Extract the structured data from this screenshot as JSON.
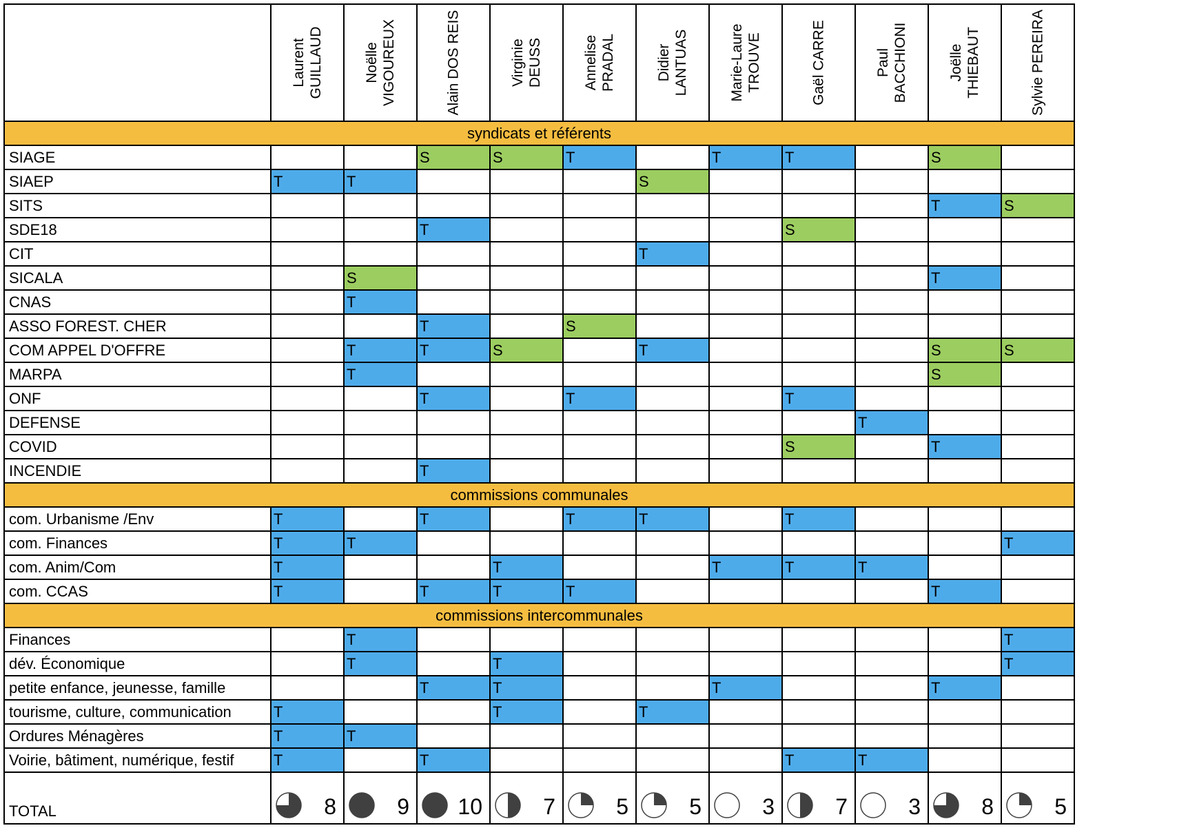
{
  "members": [
    {
      "name": "Laurent\nGUILLAUD"
    },
    {
      "name": "Noëlle\nVIGOUREUX"
    },
    {
      "name": "Alain DOS REIS"
    },
    {
      "name": "Virginie\nDEUSS"
    },
    {
      "name": "Annelise\nPRADAL"
    },
    {
      "name": "Didier\nLANTUAS"
    },
    {
      "name": "Marie-Laure\nTROUVE"
    },
    {
      "name": "Gaël CARRE"
    },
    {
      "name": "Paul\nBACCHIONI"
    },
    {
      "name": "Joëlle\nTHIEBAUT"
    },
    {
      "name": "Sylvie PEREIRA"
    }
  ],
  "sections": [
    {
      "title": "syndicats et référents",
      "rows": [
        {
          "label": "SIAGE",
          "cells": [
            "",
            "",
            "S",
            "S",
            "T",
            "",
            "T",
            "T",
            "",
            "S",
            ""
          ]
        },
        {
          "label": "SIAEP",
          "cells": [
            "T",
            "T",
            "",
            "",
            "",
            "S",
            "",
            "",
            "",
            "",
            ""
          ]
        },
        {
          "label": "SITS",
          "cells": [
            "",
            "",
            "",
            "",
            "",
            "",
            "",
            "",
            "",
            "T",
            "S"
          ]
        },
        {
          "label": "SDE18",
          "cells": [
            "",
            "",
            "T",
            "",
            "",
            "",
            "",
            "S",
            "",
            "",
            ""
          ]
        },
        {
          "label": "CIT",
          "cells": [
            "",
            "",
            "",
            "",
            "",
            "T",
            "",
            "",
            "",
            "",
            ""
          ]
        },
        {
          "label": "SICALA",
          "cells": [
            "",
            "S",
            "",
            "",
            "",
            "",
            "",
            "",
            "",
            "T",
            ""
          ]
        },
        {
          "label": "CNAS",
          "cells": [
            "",
            "T",
            "",
            "",
            "",
            "",
            "",
            "",
            "",
            "",
            ""
          ]
        },
        {
          "label": "ASSO FOREST. CHER",
          "cells": [
            "",
            "",
            "T",
            "",
            "S",
            "",
            "",
            "",
            "",
            "",
            ""
          ]
        },
        {
          "label": "COM APPEL D'OFFRE",
          "cells": [
            "",
            "T",
            "T",
            "S",
            "",
            "T",
            "",
            "",
            "",
            "S",
            "S"
          ]
        },
        {
          "label": "MARPA",
          "cells": [
            "",
            "T",
            "",
            "",
            "",
            "",
            "",
            "",
            "",
            "S",
            ""
          ]
        },
        {
          "label": "ONF",
          "cells": [
            "",
            "",
            "T",
            "",
            "T",
            "",
            "",
            "T",
            "",
            "",
            ""
          ]
        },
        {
          "label": "DEFENSE",
          "cells": [
            "",
            "",
            "",
            "",
            "",
            "",
            "",
            "",
            "T",
            "",
            ""
          ]
        },
        {
          "label": "COVID",
          "cells": [
            "",
            "",
            "",
            "",
            "",
            "",
            "",
            "S",
            "",
            "T",
            ""
          ]
        },
        {
          "label": "INCENDIE",
          "cells": [
            "",
            "",
            "T",
            "",
            "",
            "",
            "",
            "",
            "",
            "",
            ""
          ]
        }
      ]
    },
    {
      "title": "commissions communales",
      "rows": [
        {
          "label": "com. Urbanisme /Env",
          "cells": [
            "T",
            "",
            "T",
            "",
            "T",
            "T",
            "",
            "T",
            "",
            "",
            ""
          ]
        },
        {
          "label": "com. Finances",
          "cells": [
            "T",
            "T",
            "",
            "",
            "",
            "",
            "",
            "",
            "",
            "",
            "T"
          ]
        },
        {
          "label": "com. Anim/Com",
          "cells": [
            "T",
            "",
            "",
            "T",
            "",
            "",
            "T",
            "T",
            "T",
            "",
            ""
          ]
        },
        {
          "label": "com. CCAS",
          "cells": [
            "T",
            "",
            "T",
            "T",
            "T",
            "",
            "",
            "",
            "",
            "T",
            ""
          ]
        }
      ]
    },
    {
      "title": "commissions intercommunales",
      "rows": [
        {
          "label": "Finances",
          "cells": [
            "",
            "T",
            "",
            "",
            "",
            "",
            "",
            "",
            "",
            "",
            "T"
          ]
        },
        {
          "label": "dév. Économique",
          "cells": [
            "",
            "T",
            "",
            "T",
            "",
            "",
            "",
            "",
            "",
            "",
            "T"
          ]
        },
        {
          "label": "petite enfance, jeunesse, famille",
          "cells": [
            "",
            "",
            "T",
            "T",
            "",
            "",
            "T",
            "",
            "",
            "T",
            ""
          ]
        },
        {
          "label": "tourisme, culture, communication",
          "cells": [
            "T",
            "",
            "",
            "T",
            "",
            "T",
            "",
            "",
            "",
            "",
            ""
          ]
        },
        {
          "label": "Ordures Ménagères",
          "cells": [
            "T",
            "T",
            "",
            "",
            "",
            "",
            "",
            "",
            "",
            "",
            ""
          ]
        },
        {
          "label": "Voirie, bâtiment, numérique, festif",
          "cells": [
            "T",
            "",
            "T",
            "",
            "",
            "",
            "",
            "T",
            "T",
            "",
            ""
          ]
        }
      ]
    }
  ],
  "total": {
    "label": "TOTAL",
    "values": [
      {
        "value": "8",
        "quarters": 3
      },
      {
        "value": "9",
        "quarters": 4
      },
      {
        "value": "10",
        "quarters": 4
      },
      {
        "value": "7",
        "quarters": 2
      },
      {
        "value": "5",
        "quarters": 1
      },
      {
        "value": "5",
        "quarters": 1
      },
      {
        "value": "3",
        "quarters": 0
      },
      {
        "value": "7",
        "quarters": 2
      },
      {
        "value": "3",
        "quarters": 0
      },
      {
        "value": "8",
        "quarters": 3
      },
      {
        "value": "5",
        "quarters": 1
      }
    ]
  },
  "colors": {
    "titulaire": "#4eabea",
    "suppleant": "#9ccd60",
    "section": "#f5bd40",
    "icon_fill": "#404040"
  }
}
